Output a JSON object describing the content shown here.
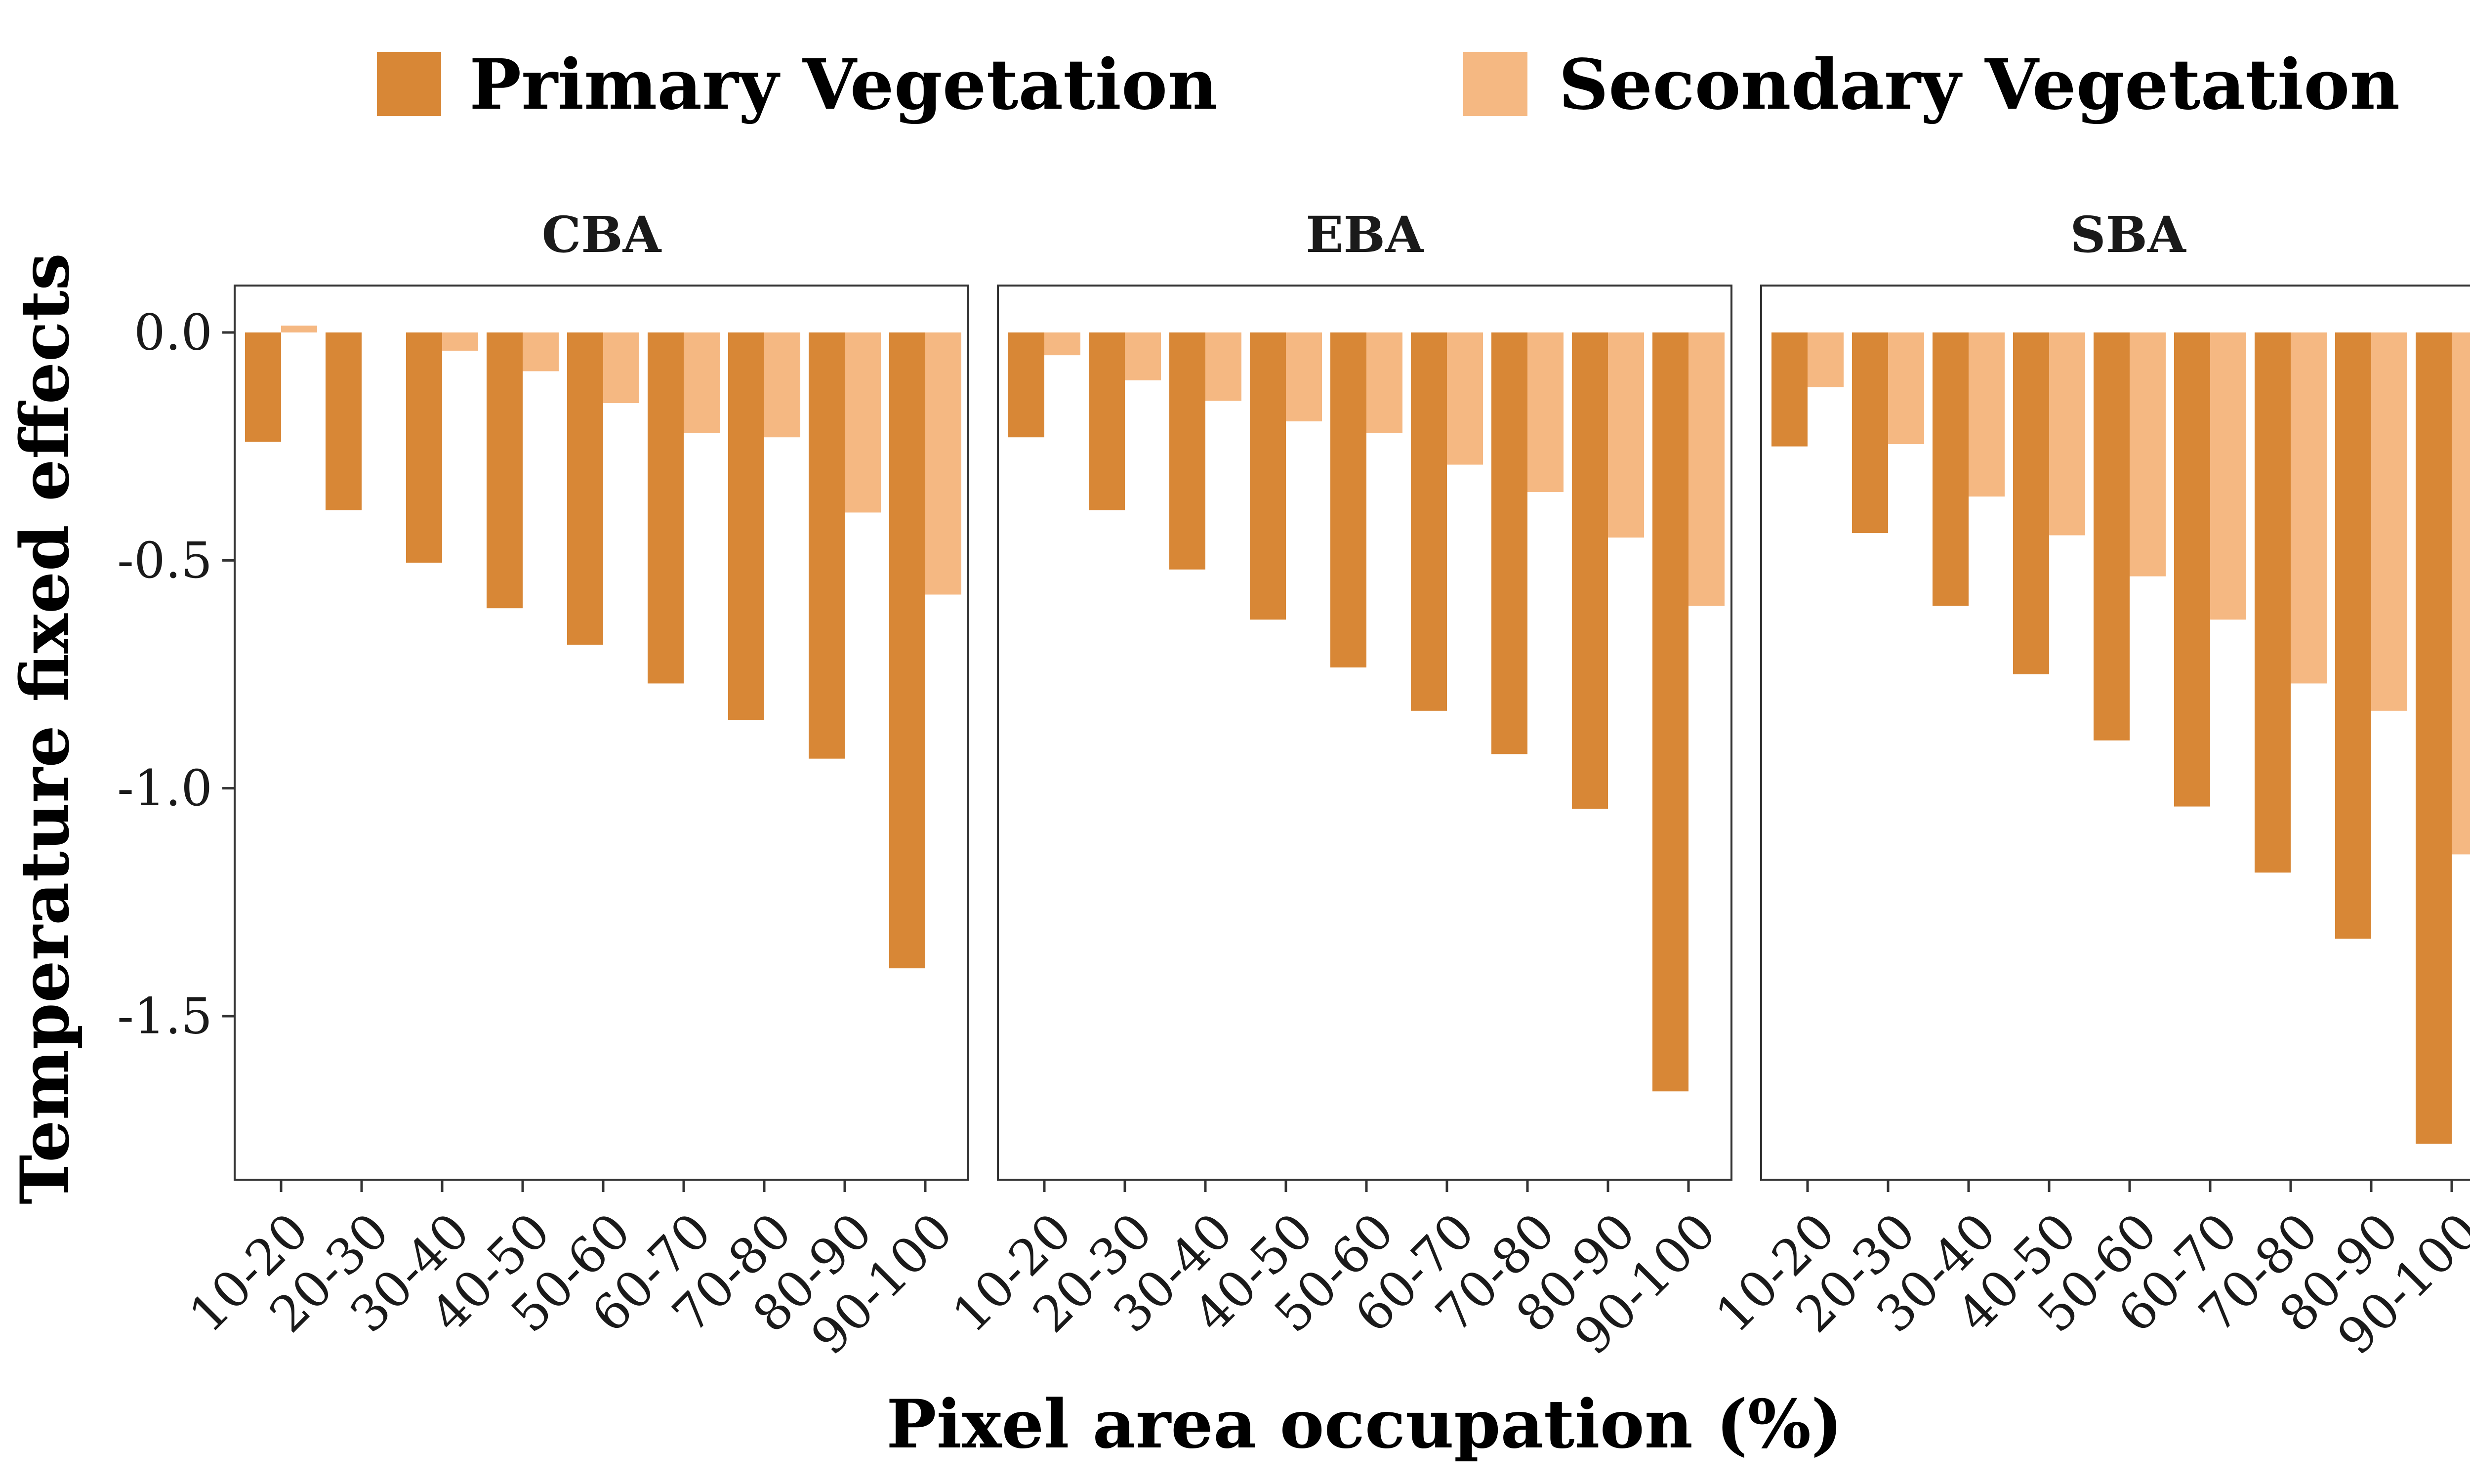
{
  "chart_data": {
    "type": "bar",
    "xlabel": "Pixel area occupation (%)",
    "ylabel": "Temperature fixed effects",
    "ylim": [
      -1.85,
      0.1
    ],
    "yticks": [
      0.0,
      -0.5,
      -1.0,
      -1.5
    ],
    "ytick_labels": [
      "0.0",
      "-0.5",
      "-1.0",
      "-1.5"
    ],
    "grid": false,
    "legend_position": "top",
    "categories": [
      "10-20",
      "20-30",
      "30-40",
      "40-50",
      "50-60",
      "60-70",
      "70-80",
      "80-90",
      "90-100"
    ],
    "series_styles": [
      {
        "name": "Primary Vegetation",
        "color": "#D88736"
      },
      {
        "name": "Secondary Vegetation",
        "color": "#F5B882"
      }
    ],
    "facets": [
      {
        "title": "CBA",
        "series": [
          {
            "name": "Primary Vegetation",
            "values": [
              -0.24,
              -0.39,
              -0.505,
              -0.605,
              -0.685,
              -0.77,
              -0.85,
              -0.935,
              -1.395
            ]
          },
          {
            "name": "Secondary Vegetation",
            "values": [
              0.015,
              0.0,
              -0.04,
              -0.085,
              -0.155,
              -0.22,
              -0.23,
              -0.395,
              -0.575
            ]
          }
        ]
      },
      {
        "title": "EBA",
        "series": [
          {
            "name": "Primary Vegetation",
            "values": [
              -0.23,
              -0.39,
              -0.52,
              -0.63,
              -0.735,
              -0.83,
              -0.925,
              -1.045,
              -1.665
            ]
          },
          {
            "name": "Secondary Vegetation",
            "values": [
              -0.05,
              -0.105,
              -0.15,
              -0.195,
              -0.22,
              -0.29,
              -0.35,
              -0.45,
              -0.6
            ]
          }
        ]
      },
      {
        "title": "SBA",
        "series": [
          {
            "name": "Primary Vegetation",
            "values": [
              -0.25,
              -0.44,
              -0.6,
              -0.75,
              -0.895,
              -1.04,
              -1.185,
              -1.33,
              -1.78
            ]
          },
          {
            "name": "Secondary Vegetation",
            "values": [
              -0.12,
              -0.245,
              -0.36,
              -0.445,
              -0.535,
              -0.63,
              -0.77,
              -0.83,
              -1.145
            ]
          }
        ]
      }
    ]
  }
}
